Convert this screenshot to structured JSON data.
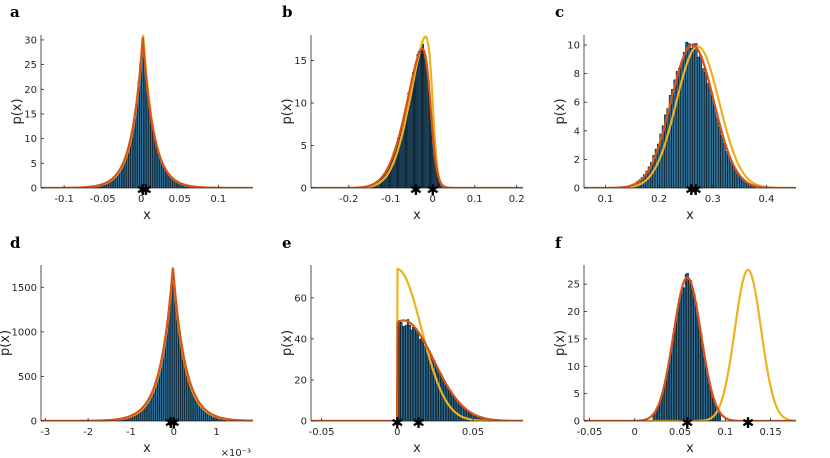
{
  "figure": {
    "background": "#ffffff",
    "colors": {
      "bar_fill": "#2f6f96",
      "bar_edge": "#000000",
      "fit_curve": "#d95319",
      "model_curve": "#edb120",
      "axis": "#262626"
    },
    "marker_glyph": "✱"
  },
  "chart_data": [
    {
      "panel": "a",
      "type": "bar",
      "xlabel": "x",
      "ylabel": "p(x)",
      "xlim": [
        -0.13,
        0.145
      ],
      "ylim": [
        0,
        31
      ],
      "xticks": [
        -0.1,
        -0.05,
        0,
        0.05,
        0.1
      ],
      "xtick_labels": [
        "-0.1",
        "-0.05",
        "0",
        "0.05",
        "0.1"
      ],
      "yticks": [
        0,
        5,
        10,
        15,
        20,
        25,
        30
      ],
      "ytick_labels": [
        "0",
        "5",
        "10",
        "15",
        "20",
        "25",
        "30"
      ],
      "series": [
        {
          "role": "histogram",
          "dist": "laplace",
          "params": [
            0.002,
            0.014
          ],
          "peak": 30,
          "range": [
            -0.09,
            0.1
          ],
          "bins": 80
        },
        {
          "role": "fit",
          "dist": "laplace",
          "params": [
            0.002,
            0.0142
          ],
          "peak": 30.5,
          "color": "#d95319"
        },
        {
          "role": "model",
          "dist": "laplace",
          "params": [
            0.0025,
            0.0138
          ],
          "peak": 31,
          "color": "#edb120"
        }
      ],
      "markers": [
        0.002,
        0.006
      ]
    },
    {
      "panel": "b",
      "type": "bar",
      "xlabel": "x",
      "ylabel": "p(x)",
      "xlim": [
        -0.29,
        0.215
      ],
      "ylim": [
        0,
        18
      ],
      "xticks": [
        -0.2,
        -0.1,
        0,
        0.1,
        0.2
      ],
      "xtick_labels": [
        "-0.2",
        "-0.1",
        "0",
        "0.1",
        "0.2"
      ],
      "yticks": [
        0,
        5,
        10,
        15
      ],
      "ytick_labels": [
        "0",
        "5",
        "10",
        "15"
      ],
      "series": [
        {
          "role": "histogram",
          "dist": "skewnormal",
          "params": [
            -0.005,
            0.05,
            -4
          ],
          "peak": 16.4,
          "range": [
            -0.16,
            0.03
          ],
          "bins": 70
        },
        {
          "role": "fit",
          "dist": "skewnormal",
          "params": [
            -0.005,
            0.05,
            -4
          ],
          "peak": 16.4,
          "color": "#d95319"
        },
        {
          "role": "model",
          "dist": "skewnormal",
          "params": [
            0.0,
            0.048,
            -5
          ],
          "peak": 17.8,
          "color": "#edb120"
        }
      ],
      "markers": [
        -0.04,
        0.0
      ]
    },
    {
      "panel": "c",
      "type": "bar",
      "xlabel": "x",
      "ylabel": "p(x)",
      "xlim": [
        0.06,
        0.455
      ],
      "ylim": [
        0,
        10.7
      ],
      "xticks": [
        0.1,
        0.2,
        0.3,
        0.4
      ],
      "xtick_labels": [
        "0.1",
        "0.2",
        "0.3",
        "0.4"
      ],
      "yticks": [
        0,
        2,
        4,
        6,
        8,
        10
      ],
      "ytick_labels": [
        "0",
        "2",
        "4",
        "6",
        "8",
        "10"
      ],
      "series": [
        {
          "role": "histogram",
          "dist": "normal",
          "params": [
            0.26,
            0.04
          ],
          "peak": 10.1,
          "range": [
            0.14,
            0.38
          ],
          "bins": 55
        },
        {
          "role": "fit",
          "dist": "normal",
          "params": [
            0.262,
            0.04
          ],
          "peak": 10.0,
          "color": "#d95319"
        },
        {
          "role": "model",
          "dist": "normal",
          "params": [
            0.272,
            0.04
          ],
          "peak": 9.9,
          "color": "#edb120"
        }
      ],
      "markers": [
        0.26,
        0.268
      ]
    },
    {
      "panel": "d",
      "type": "bar",
      "xlabel": "x",
      "ylabel": "p(x)",
      "xlim": [
        -3.1,
        1.85
      ],
      "ylim": [
        0,
        1750
      ],
      "xticks": [
        -3,
        -2,
        -1,
        0,
        1
      ],
      "xtick_labels": [
        "-3",
        "-2",
        "-1",
        "0",
        "1"
      ],
      "x_exponent": "×10⁻³",
      "yticks": [
        0,
        500,
        1000,
        1500
      ],
      "ytick_labels": [
        "0",
        "500",
        "1000",
        "1500"
      ],
      "series": [
        {
          "role": "histogram",
          "dist": "laplace",
          "params": [
            -0.02,
            0.28
          ],
          "peak": 1700,
          "range": [
            -2.3,
            1.5
          ],
          "bins": 85
        },
        {
          "role": "fit",
          "dist": "laplace",
          "params": [
            -0.02,
            0.29
          ],
          "peak": 1720,
          "color": "#d95319"
        },
        {
          "role": "model",
          "dist": "laplace",
          "params": [
            -0.02,
            0.28
          ],
          "peak": 1700,
          "color": "#edb120"
        }
      ],
      "markers": [
        -0.07,
        0.0
      ]
    },
    {
      "panel": "e",
      "type": "bar",
      "xlabel": "x",
      "ylabel": "p(x)",
      "xlim": [
        -0.057,
        0.083
      ],
      "ylim": [
        0,
        76
      ],
      "xticks": [
        -0.05,
        0,
        0.05
      ],
      "xtick_labels": [
        "-0.05",
        "0",
        "0.05"
      ],
      "yticks": [
        0,
        20,
        40,
        60
      ],
      "ytick_labels": [
        "0",
        "20",
        "40",
        "60"
      ],
      "series": [
        {
          "role": "histogram",
          "dist": "truncated",
          "params": [
            0.004,
            0.02
          ],
          "peak": 48,
          "range": [
            0.0,
            0.06
          ],
          "bins": 55
        },
        {
          "role": "fit",
          "dist": "truncated",
          "params": [
            0.004,
            0.02
          ],
          "peak": 49,
          "color": "#d95319"
        },
        {
          "role": "model",
          "dist": "halfnormal",
          "params": [
            0.0,
            0.016
          ],
          "peak": 74,
          "color": "#edb120"
        }
      ],
      "markers": [
        0.0,
        0.014
      ]
    },
    {
      "panel": "f",
      "type": "bar",
      "xlabel": "x",
      "ylabel": "p(x)",
      "xlim": [
        -0.056,
        0.178
      ],
      "ylim": [
        0,
        28.5
      ],
      "xticks": [
        -0.05,
        0,
        0.05,
        0.1,
        0.15
      ],
      "xtick_labels": [
        "-0.05",
        "0",
        "0.05",
        "0.1",
        "0.15"
      ],
      "yticks": [
        0,
        5,
        10,
        15,
        20,
        25
      ],
      "ytick_labels": [
        "0",
        "5",
        "10",
        "15",
        "20",
        "25"
      ],
      "series": [
        {
          "role": "histogram",
          "dist": "normal",
          "params": [
            0.058,
            0.015
          ],
          "peak": 26,
          "range": [
            0.02,
            0.095
          ],
          "bins": 40
        },
        {
          "role": "fit",
          "dist": "normal",
          "params": [
            0.058,
            0.0152
          ],
          "peak": 26.2,
          "color": "#d95319"
        },
        {
          "role": "model",
          "dist": "normal",
          "params": [
            0.125,
            0.0145
          ],
          "peak": 27.6,
          "color": "#edb120"
        }
      ],
      "markers": [
        0.058,
        0.125
      ]
    }
  ]
}
